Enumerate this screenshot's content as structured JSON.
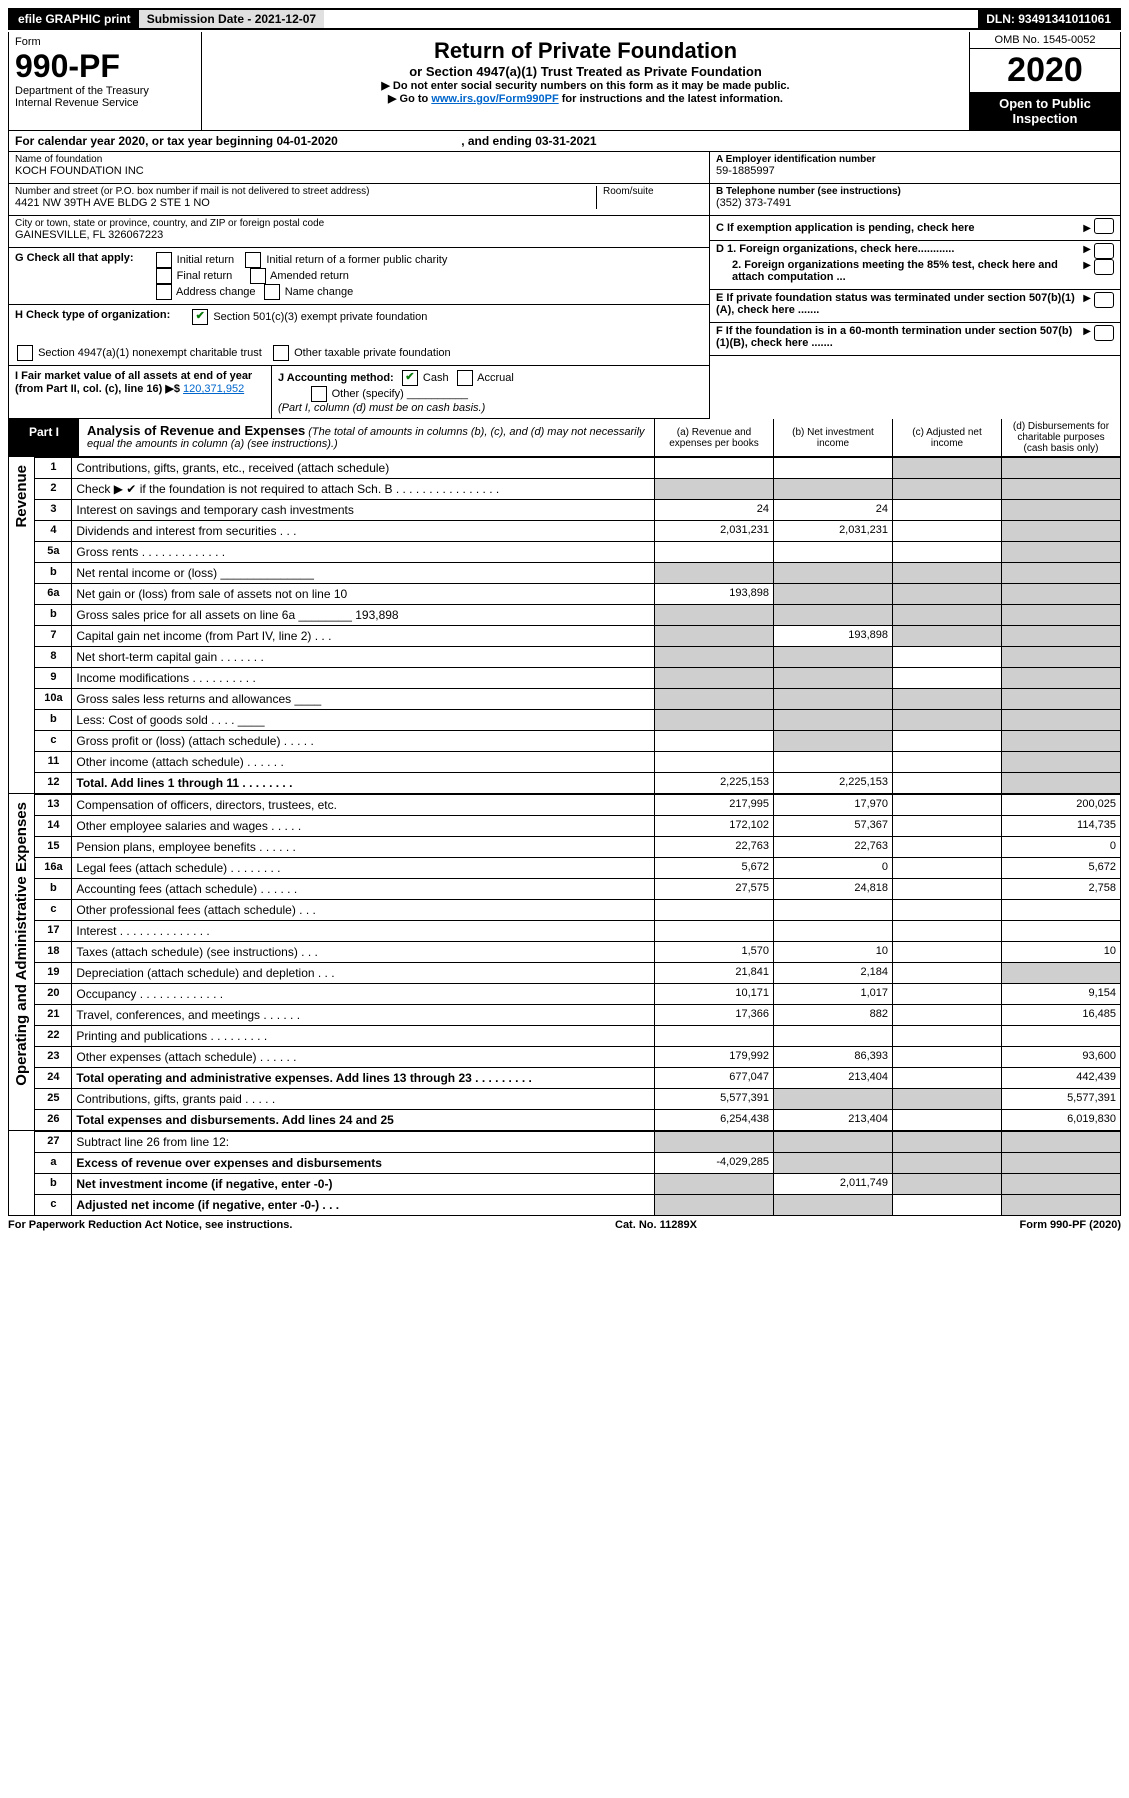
{
  "topbar": {
    "efile": "efile GRAPHIC print",
    "submission_label": "Submission Date - 2021-12-07",
    "dln": "DLN: 93491341011061"
  },
  "header": {
    "form_label": "Form",
    "form_number": "990-PF",
    "dept": "Department of the Treasury",
    "irs": "Internal Revenue Service",
    "title": "Return of Private Foundation",
    "subtitle": "or Section 4947(a)(1) Trust Treated as Private Foundation",
    "note1": "▶ Do not enter social security numbers on this form as it may be made public.",
    "note2_pre": "▶ Go to ",
    "note2_link": "www.irs.gov/Form990PF",
    "note2_post": " for instructions and the latest information.",
    "omb": "OMB No. 1545-0052",
    "year": "2020",
    "open": "Open to Public Inspection"
  },
  "calendar": {
    "text_pre": "For calendar year 2020, or tax year beginning ",
    "begin": "04-01-2020",
    "mid": " , and ending ",
    "end": "03-31-2021"
  },
  "entity": {
    "name_label": "Name of foundation",
    "name": "KOCH FOUNDATION INC",
    "addr_label": "Number and street (or P.O. box number if mail is not delivered to street address)",
    "addr": "4421 NW 39TH AVE BLDG 2 STE 1 NO",
    "room_label": "Room/suite",
    "city_label": "City or town, state or province, country, and ZIP or foreign postal code",
    "city": "GAINESVILLE, FL 326067223",
    "ein_label": "A Employer identification number",
    "ein": "59-1885997",
    "phone_label": "B Telephone number (see instructions)",
    "phone": "(352) 373-7491",
    "c_label": "C If exemption application is pending, check here",
    "d1_label": "D 1. Foreign organizations, check here............",
    "d2_label": "2. Foreign organizations meeting the 85% test, check here and attach computation ...",
    "e_label": "E If private foundation status was terminated under section 507(b)(1)(A), check here .......",
    "f_label": "F If the foundation is in a 60-month termination under section 507(b)(1)(B), check here .......",
    "g_label": "G Check all that apply:",
    "g_opts": [
      "Initial return",
      "Initial return of a former public charity",
      "Final return",
      "Amended return",
      "Address change",
      "Name change"
    ],
    "h_label": "H Check type of organization:",
    "h1": "Section 501(c)(3) exempt private foundation",
    "h2": "Section 4947(a)(1) nonexempt charitable trust",
    "h3": "Other taxable private foundation",
    "i_label": "I Fair market value of all assets at end of year (from Part II, col. (c), line 16) ▶$",
    "i_value": "120,371,952",
    "j_label": "J Accounting method:",
    "j_cash": "Cash",
    "j_accrual": "Accrual",
    "j_other": "Other (specify)",
    "j_note": "(Part I, column (d) must be on cash basis.)"
  },
  "part1": {
    "tag": "Part I",
    "title": "Analysis of Revenue and Expenses",
    "title_note": " (The total of amounts in columns (b), (c), and (d) may not necessarily equal the amounts in column (a) (see instructions).)",
    "col_a": "(a) Revenue and expenses per books",
    "col_b": "(b) Net investment income",
    "col_c": "(c) Adjusted net income",
    "col_d": "(d) Disbursements for charitable purposes (cash basis only)"
  },
  "sections": {
    "revenue": "Revenue",
    "expenses": "Operating and Administrative Expenses"
  },
  "rows": [
    {
      "n": "1",
      "d": "Contributions, gifts, grants, etc., received (attach schedule)",
      "a": "",
      "b": "",
      "c_shade": true,
      "d_shade": true
    },
    {
      "n": "2",
      "d": "Check ▶ ✔ if the foundation is not required to attach Sch. B   .  .  .  .  .  .  .  .  .  .  .  .  .  .  .  .",
      "a_shade": true,
      "b_shade": true,
      "c_shade": true,
      "d_shade": true
    },
    {
      "n": "3",
      "d": "Interest on savings and temporary cash investments",
      "a": "24",
      "b": "24",
      "d_shade": true
    },
    {
      "n": "4",
      "d": "Dividends and interest from securities   .  .  .",
      "a": "2,031,231",
      "b": "2,031,231",
      "d_shade": true
    },
    {
      "n": "5a",
      "d": "Gross rents   .  .  .  .  .  .  .  .  .  .  .  .  .",
      "d_shade": true
    },
    {
      "n": "b",
      "d": "Net rental income or (loss)  ______________",
      "a_shade": true,
      "b_shade": true,
      "c_shade": true,
      "d_shade": true
    },
    {
      "n": "6a",
      "d": "Net gain or (loss) from sale of assets not on line 10",
      "a": "193,898",
      "b_shade": true,
      "c_shade": true,
      "d_shade": true
    },
    {
      "n": "b",
      "d": "Gross sales price for all assets on line 6a ________ 193,898",
      "a_shade": true,
      "b_shade": true,
      "c_shade": true,
      "d_shade": true
    },
    {
      "n": "7",
      "d": "Capital gain net income (from Part IV, line 2)  .  .  .",
      "a_shade": true,
      "b": "193,898",
      "c_shade": true,
      "d_shade": true
    },
    {
      "n": "8",
      "d": "Net short-term capital gain  .  .  .  .  .  .  .",
      "a_shade": true,
      "b_shade": true,
      "d_shade": true
    },
    {
      "n": "9",
      "d": "Income modifications  .  .  .  .  .  .  .  .  .  .",
      "a_shade": true,
      "b_shade": true,
      "d_shade": true
    },
    {
      "n": "10a",
      "d": "Gross sales less returns and allowances  ____",
      "a_shade": true,
      "b_shade": true,
      "c_shade": true,
      "d_shade": true
    },
    {
      "n": "b",
      "d": "Less: Cost of goods sold   .  .  .  .   ____",
      "a_shade": true,
      "b_shade": true,
      "c_shade": true,
      "d_shade": true
    },
    {
      "n": "c",
      "d": "Gross profit or (loss) (attach schedule)   .  .  .  .  .",
      "a": "",
      "b_shade": true,
      "d_shade": true
    },
    {
      "n": "11",
      "d": "Other income (attach schedule)   .  .  .  .  .  .",
      "d_shade": true
    },
    {
      "n": "12",
      "d": "Total. Add lines 1 through 11   .  .  .  .  .  .  .  .",
      "bold": true,
      "a": "2,225,153",
      "b": "2,225,153",
      "d_shade": true
    }
  ],
  "exp_rows": [
    {
      "n": "13",
      "d": "Compensation of officers, directors, trustees, etc.",
      "a": "217,995",
      "b": "17,970",
      "dd": "200,025"
    },
    {
      "n": "14",
      "d": "Other employee salaries and wages  .  .  .  .  .",
      "a": "172,102",
      "b": "57,367",
      "dd": "114,735"
    },
    {
      "n": "15",
      "d": "Pension plans, employee benefits  .  .  .  .  .  .",
      "a": "22,763",
      "b": "22,763",
      "dd": "0"
    },
    {
      "n": "16a",
      "d": "Legal fees (attach schedule)  .  .  .  .  .  .  .  .",
      "a": "5,672",
      "b": "0",
      "dd": "5,672"
    },
    {
      "n": "b",
      "d": "Accounting fees (attach schedule)  .  .  .  .  .  .",
      "a": "27,575",
      "b": "24,818",
      "dd": "2,758"
    },
    {
      "n": "c",
      "d": "Other professional fees (attach schedule)   .  .  .",
      "a": "",
      "b": "",
      "dd": ""
    },
    {
      "n": "17",
      "d": "Interest  .  .  .  .  .  .  .  .  .  .  .  .  .  .",
      "a": "",
      "b": "",
      "dd": ""
    },
    {
      "n": "18",
      "d": "Taxes (attach schedule) (see instructions)   .  .  .",
      "a": "1,570",
      "b": "10",
      "dd": "10"
    },
    {
      "n": "19",
      "d": "Depreciation (attach schedule) and depletion  .  .  .",
      "a": "21,841",
      "b": "2,184",
      "d_shade": true
    },
    {
      "n": "20",
      "d": "Occupancy  .  .  .  .  .  .  .  .  .  .  .  .  .",
      "a": "10,171",
      "b": "1,017",
      "dd": "9,154"
    },
    {
      "n": "21",
      "d": "Travel, conferences, and meetings  .  .  .  .  .  .",
      "a": "17,366",
      "b": "882",
      "dd": "16,485"
    },
    {
      "n": "22",
      "d": "Printing and publications  .  .  .  .  .  .  .  .  .",
      "a": "",
      "b": "",
      "dd": ""
    },
    {
      "n": "23",
      "d": "Other expenses (attach schedule)  .  .  .  .  .  .",
      "a": "179,992",
      "b": "86,393",
      "dd": "93,600"
    },
    {
      "n": "24",
      "d": "Total operating and administrative expenses. Add lines 13 through 23  .  .  .  .  .  .  .  .  .",
      "bold": true,
      "a": "677,047",
      "b": "213,404",
      "dd": "442,439"
    },
    {
      "n": "25",
      "d": "Contributions, gifts, grants paid   .  .  .  .  .",
      "a": "5,577,391",
      "b_shade": true,
      "c_shade": true,
      "dd": "5,577,391"
    },
    {
      "n": "26",
      "d": "Total expenses and disbursements. Add lines 24 and 25",
      "bold": true,
      "a": "6,254,438",
      "b": "213,404",
      "dd": "6,019,830"
    }
  ],
  "net_rows": [
    {
      "n": "27",
      "d": "Subtract line 26 from line 12:",
      "a_shade": true,
      "b_shade": true,
      "c_shade": true,
      "d_shade": true
    },
    {
      "n": "a",
      "d": "Excess of revenue over expenses and disbursements",
      "bold": true,
      "a": "-4,029,285",
      "b_shade": true,
      "c_shade": true,
      "d_shade": true
    },
    {
      "n": "b",
      "d": "Net investment income (if negative, enter -0-)",
      "bold": true,
      "a_shade": true,
      "b": "2,011,749",
      "c_shade": true,
      "d_shade": true
    },
    {
      "n": "c",
      "d": "Adjusted net income (if negative, enter -0-)  .  .  .",
      "bold": true,
      "a_shade": true,
      "b_shade": true,
      "d_shade": true
    }
  ],
  "footer": {
    "pra": "For Paperwork Reduction Act Notice, see instructions.",
    "cat": "Cat. No. 11289X",
    "form": "Form 990-PF (2020)"
  }
}
